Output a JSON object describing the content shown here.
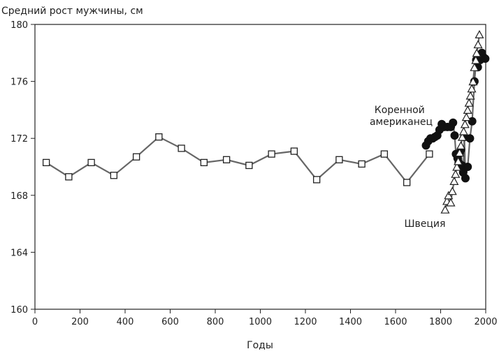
{
  "chart_data": {
    "type": "line",
    "ylabel": "Средний рост мужчины, см",
    "xlabel": "Годы",
    "xlim": [
      0,
      2000
    ],
    "ylim": [
      160,
      180
    ],
    "x_ticks": [
      0,
      200,
      400,
      600,
      800,
      1000,
      1200,
      1400,
      1600,
      1800,
      2000
    ],
    "y_ticks": [
      160,
      164,
      168,
      172,
      176,
      180
    ],
    "x_tick_labels": [
      "0",
      "200",
      "400",
      "600",
      "800",
      "1000",
      "1200",
      "1400",
      "1600",
      "1800",
      "2000"
    ],
    "y_tick_labels": [
      "160",
      "164",
      "168",
      "172",
      "176",
      "180"
    ],
    "grid": false,
    "line_color": "#666666",
    "series": [
      {
        "marker": "square",
        "points": [
          [
            50,
            170.3
          ],
          [
            150,
            169.3
          ],
          [
            250,
            170.3
          ],
          [
            350,
            169.4
          ],
          [
            450,
            170.7
          ],
          [
            550,
            172.1
          ],
          [
            650,
            171.3
          ],
          [
            750,
            170.3
          ],
          [
            850,
            170.5
          ],
          [
            950,
            170.1
          ],
          [
            1050,
            170.9
          ],
          [
            1150,
            171.1
          ],
          [
            1250,
            169.1
          ],
          [
            1350,
            170.5
          ],
          [
            1450,
            170.2
          ],
          [
            1550,
            170.9
          ],
          [
            1650,
            168.9
          ],
          [
            1750,
            170.9
          ]
        ]
      },
      {
        "name": "Коренной американец",
        "marker": "circle",
        "points": [
          [
            1735,
            171.5
          ],
          [
            1745,
            171.8
          ],
          [
            1755,
            172.0
          ],
          [
            1765,
            172.0
          ],
          [
            1775,
            172.1
          ],
          [
            1785,
            172.2
          ],
          [
            1795,
            172.6
          ],
          [
            1805,
            173.0
          ],
          [
            1815,
            172.8
          ],
          [
            1830,
            172.8
          ],
          [
            1845,
            172.8
          ],
          [
            1855,
            173.1
          ],
          [
            1862,
            172.2
          ],
          [
            1868,
            170.9
          ],
          [
            1875,
            170.6
          ],
          [
            1880,
            170.3
          ],
          [
            1885,
            171.0
          ],
          [
            1890,
            171.2
          ],
          [
            1895,
            170.1
          ],
          [
            1900,
            169.6
          ],
          [
            1905,
            172.1
          ],
          [
            1910,
            169.2
          ],
          [
            1920,
            170.0
          ],
          [
            1930,
            172.0
          ],
          [
            1940,
            173.2
          ],
          [
            1950,
            176.0
          ],
          [
            1958,
            177.5
          ],
          [
            1965,
            177.0
          ],
          [
            1975,
            177.5
          ],
          [
            1983,
            178.0
          ],
          [
            1990,
            177.7
          ],
          [
            1998,
            177.6
          ]
        ]
      },
      {
        "name": "Швеция",
        "marker": "triangle",
        "points": [
          [
            1820,
            167.0
          ],
          [
            1828,
            167.6
          ],
          [
            1835,
            168.0
          ],
          [
            1845,
            167.5
          ],
          [
            1852,
            168.3
          ],
          [
            1860,
            169.0
          ],
          [
            1866,
            169.5
          ],
          [
            1872,
            170.0
          ],
          [
            1878,
            170.4
          ],
          [
            1884,
            171.0
          ],
          [
            1890,
            171.5
          ],
          [
            1896,
            172.1
          ],
          [
            1902,
            172.5
          ],
          [
            1908,
            173.0
          ],
          [
            1914,
            173.5
          ],
          [
            1920,
            174.0
          ],
          [
            1926,
            174.5
          ],
          [
            1932,
            175.0
          ],
          [
            1938,
            175.5
          ],
          [
            1944,
            176.0
          ],
          [
            1950,
            177.0
          ],
          [
            1956,
            177.5
          ],
          [
            1960,
            178.0
          ],
          [
            1966,
            178.6
          ],
          [
            1972,
            179.3
          ]
        ]
      }
    ],
    "annotations": [
      "Коренной американец",
      "Швеция"
    ]
  }
}
